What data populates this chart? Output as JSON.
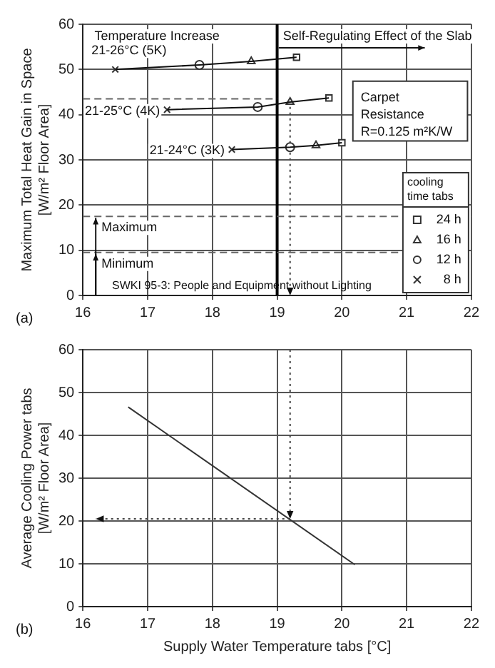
{
  "chart_data": [
    {
      "type": "line",
      "ylabel": "Maximum Total Heat Gain in Space\n[W/m² Floor Area]",
      "xlim": [
        16,
        22
      ],
      "ylim": [
        0,
        60
      ],
      "xticks": [
        16,
        17,
        18,
        19,
        20,
        21,
        22
      ],
      "yticks": [
        0,
        10,
        20,
        30,
        40,
        50,
        60
      ],
      "grid": true,
      "legend": "bottom right",
      "legend_title": "cooling time tabs",
      "series": [
        {
          "type": "line",
          "name": "21-26°C (5K)",
          "color": "#111111",
          "x": [
            16.5,
            17.8,
            18.6,
            19.3
          ],
          "values": [
            50,
            51,
            51.8,
            52.7
          ]
        },
        {
          "type": "line",
          "name": "21-25°C (4K)",
          "color": "#111111",
          "x": [
            17.3,
            18.7,
            19.2,
            19.8
          ],
          "values": [
            41.1,
            41.7,
            42.8,
            43.7
          ]
        },
        {
          "type": "line",
          "name": "21-24°C (3K)",
          "color": "#111111",
          "x": [
            18.3,
            19.2,
            19.6,
            20
          ],
          "values": [
            32.3,
            32.8,
            33.2,
            33.8
          ]
        },
        {
          "type": "scatter",
          "name": "24 h",
          "color": "#333333",
          "marker": "square",
          "x": [
            19.3,
            19.8,
            20
          ],
          "values": [
            52.7,
            43.7,
            33.8
          ]
        },
        {
          "type": "scatter",
          "name": "16 h",
          "color": "#333333",
          "marker": "triangle",
          "x": [
            18.6,
            19.2,
            19.6
          ],
          "values": [
            51.8,
            42.8,
            33.2
          ]
        },
        {
          "type": "scatter",
          "name": "12 h",
          "color": "#333333",
          "marker": "circle",
          "x": [
            17.8,
            18.7,
            19.2
          ],
          "values": [
            51,
            41.7,
            32.8
          ]
        },
        {
          "type": "scatter",
          "name": "8 h",
          "color": "#333333",
          "marker": "cross",
          "x": [
            16.5,
            17.3,
            18.3
          ],
          "values": [
            50,
            41.1,
            32.3
          ]
        },
        {
          "type": "line",
          "color": "#666666",
          "line_style": "dashed",
          "x": [
            16,
            19
          ],
          "values": [
            43.5,
            43.5
          ]
        },
        {
          "type": "line",
          "color": "#444444",
          "line_style": "dotted",
          "x": [
            19.2,
            19.2
          ],
          "values": [
            43,
            0
          ]
        }
      ],
      "ref_lines": [
        {
          "axis": "x",
          "value": 19,
          "color": "#000000",
          "line_style": "solid"
        },
        {
          "axis": "y",
          "value": 17.5,
          "label": "Maximum",
          "color": "#666666",
          "line_style": "dashed"
        },
        {
          "axis": "y",
          "value": 9.5,
          "label": "Minimum",
          "color": "#666666",
          "line_style": "dashed"
        }
      ],
      "annotations": [
        "Temperature Increase",
        "Self-Regulating Effect of the Slab",
        "Carpet\nResistance\nR=0.125 m²K/W",
        "SWKI 95-3: People and Equipment without Lighting",
        "(a)"
      ]
    },
    {
      "type": "line",
      "xlabel": "Supply Water Temperature tabs [°C]",
      "ylabel": "Average Cooling Power tabs\n[W/m² Floor Area]",
      "xlim": [
        16,
        22
      ],
      "ylim": [
        0,
        60
      ],
      "xticks": [
        16,
        17,
        18,
        19,
        20,
        21,
        22
      ],
      "yticks": [
        0,
        10,
        20,
        30,
        40,
        50,
        60
      ],
      "grid": true,
      "series": [
        {
          "type": "line",
          "color": "#333333",
          "x": [
            16.7,
            20.2
          ],
          "values": [
            46.6,
            9.8
          ]
        },
        {
          "type": "line",
          "color": "#444444",
          "line_style": "dotted",
          "x": [
            19.2,
            19.2
          ],
          "values": [
            60,
            20.5
          ]
        },
        {
          "type": "line",
          "color": "#444444",
          "line_style": "dotted",
          "x": [
            19.2,
            16.2
          ],
          "values": [
            20.5,
            20.5
          ]
        }
      ],
      "annotations": [
        "(b)"
      ]
    }
  ]
}
